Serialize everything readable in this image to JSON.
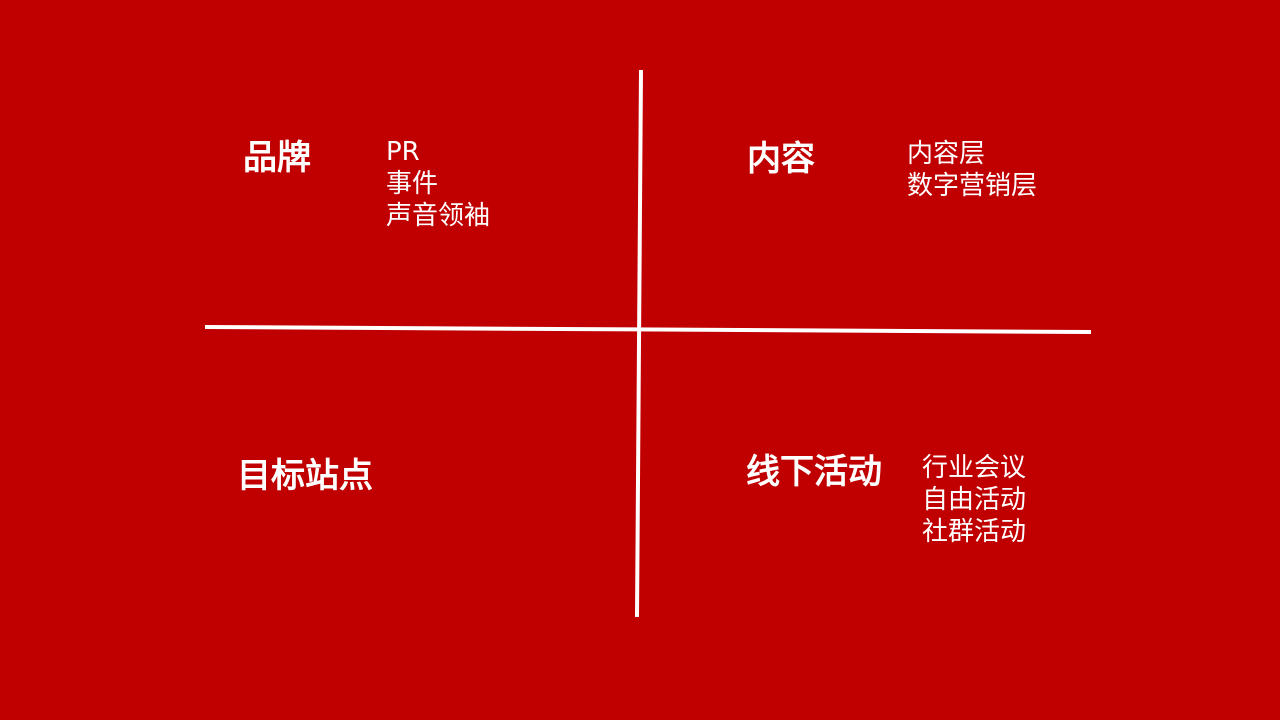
{
  "background_color": "#c00000",
  "line_color": "#ffffff",
  "quadrants": {
    "top_left": {
      "title": "品牌",
      "items": [
        "PR",
        "事件",
        "声音领袖"
      ]
    },
    "top_right": {
      "title": "内容",
      "items": [
        "内容层",
        "数字营销层"
      ]
    },
    "bottom_left": {
      "title": "目标站点",
      "items": []
    },
    "bottom_right": {
      "title": "线下活动",
      "items": [
        "行业会议",
        "自由活动",
        "社群活动"
      ]
    }
  }
}
